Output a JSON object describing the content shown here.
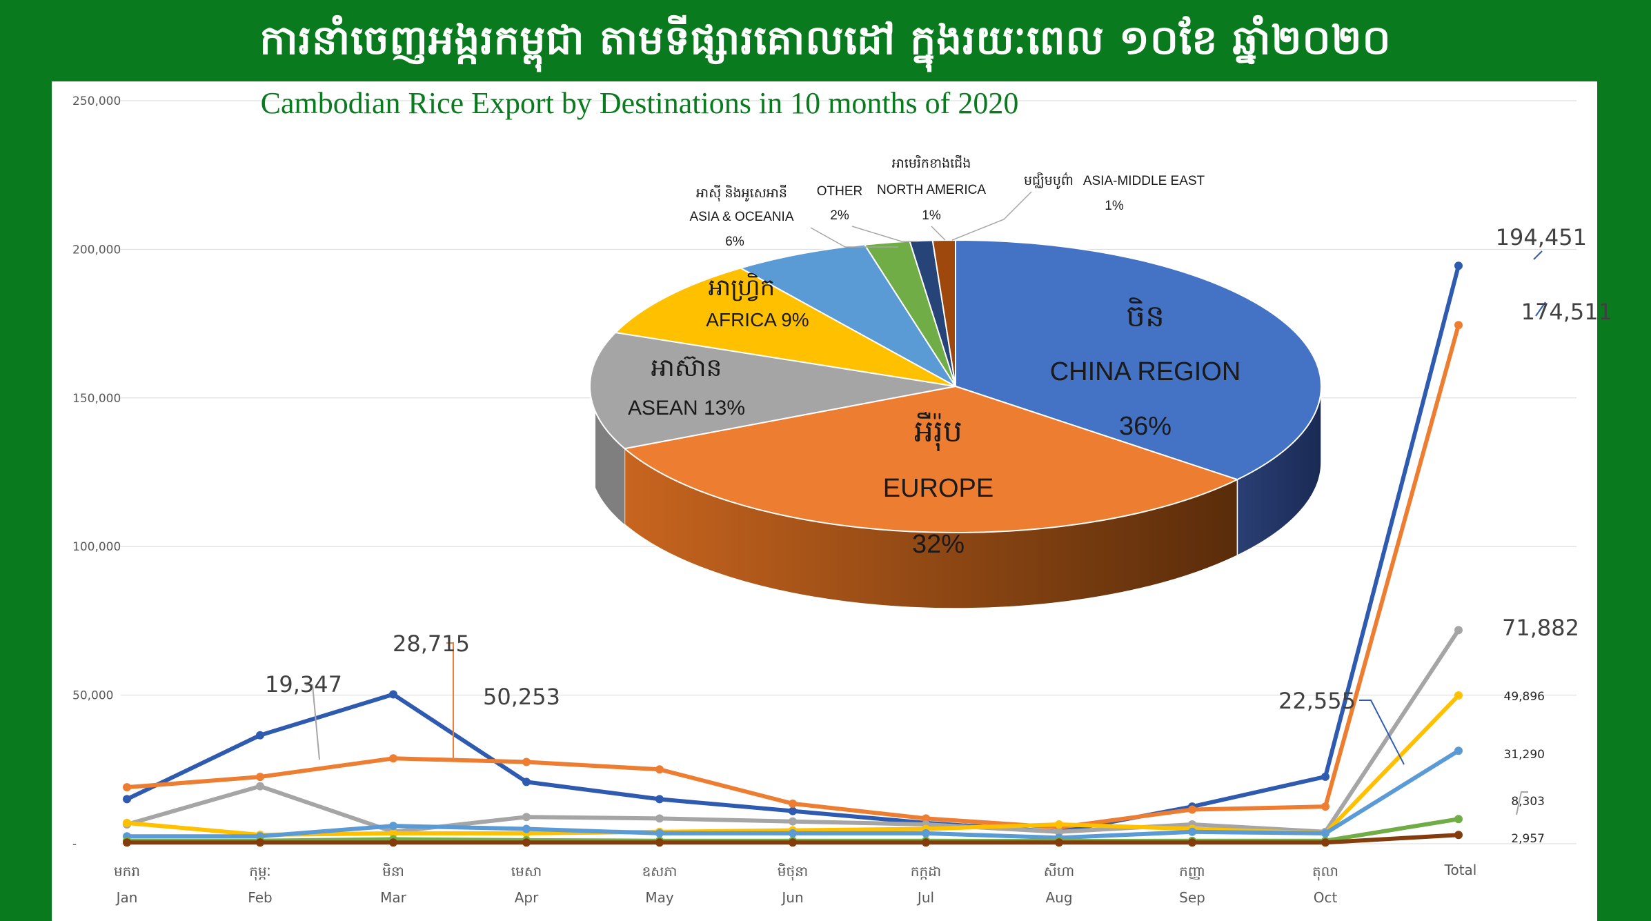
{
  "header": {
    "khmer_title": "ការនាំចេញអង្ករកម្ពុជា តាមទីផ្សារគោលដៅ ក្នុងរយៈពេល ១០ខែ ឆ្នាំ២០២០"
  },
  "chart_data": [
    {
      "type": "line",
      "title": "Cambodian Rice Export by Destinations in 10 months of 2020",
      "categories": [
        {
          "kh": "មករា",
          "en": "Jan"
        },
        {
          "kh": "កុម្ភៈ",
          "en": "Feb"
        },
        {
          "kh": "មិនា",
          "en": "Mar"
        },
        {
          "kh": "មេសា",
          "en": "Apr"
        },
        {
          "kh": "ឧសភា",
          "en": "May"
        },
        {
          "kh": "មិថុនា",
          "en": "Jun"
        },
        {
          "kh": "កក្កដា",
          "en": "Jul"
        },
        {
          "kh": "សីហា",
          "en": "Aug"
        },
        {
          "kh": "កញ្ញា",
          "en": "Sep"
        },
        {
          "kh": "តុលា",
          "en": "Oct"
        },
        {
          "kh": "",
          "en": "Total"
        }
      ],
      "ylim": [
        0,
        250000
      ],
      "yticks": [
        {
          "value": 0,
          "label": "-"
        },
        {
          "value": 50000,
          "label": "50,000"
        },
        {
          "value": 100000,
          "label": "100,000"
        },
        {
          "value": 150000,
          "label": "150,000"
        },
        {
          "value": 200000,
          "label": "200,000"
        },
        {
          "value": 250000,
          "label": "250,000"
        }
      ],
      "grid": true,
      "series": [
        {
          "color": "#2e5bb0",
          "values": [
            15000,
            36500,
            50253,
            20800,
            15000,
            11000,
            7000,
            4000,
            12500,
            22555,
            194451
          ]
        },
        {
          "color": "#ed7d31",
          "values": [
            19000,
            22500,
            28715,
            27500,
            25000,
            13500,
            8500,
            5500,
            11500,
            12500,
            174511
          ]
        },
        {
          "color": "#a5a5a5",
          "values": [
            6500,
            19347,
            4000,
            9000,
            8500,
            7500,
            6500,
            4000,
            6500,
            4000,
            71882
          ]
        },
        {
          "color": "#ffc000",
          "values": [
            7000,
            3000,
            3500,
            3500,
            4000,
            4500,
            5000,
            6500,
            5000,
            3500,
            49896
          ]
        },
        {
          "color": "#5b9bd5",
          "values": [
            2500,
            2500,
            6000,
            5000,
            3500,
            3500,
            3500,
            2000,
            4000,
            3500,
            31290
          ]
        },
        {
          "color": "#70ad47",
          "values": [
            1000,
            1000,
            1500,
            1200,
            1000,
            1000,
            1000,
            900,
            1000,
            1000,
            8303
          ]
        },
        {
          "color": "#843c0c",
          "values": [
            400,
            400,
            400,
            400,
            400,
            400,
            400,
            400,
            400,
            400,
            2957
          ]
        }
      ],
      "annotations": [
        {
          "series": 0,
          "index": 2,
          "label": "50,253"
        },
        {
          "series": 1,
          "index": 2,
          "label": "28,715"
        },
        {
          "series": 2,
          "index": 1,
          "label": "19,347"
        },
        {
          "series": 0,
          "index": 9,
          "label": "22,555"
        },
        {
          "series": 0,
          "index": 10,
          "label": "194,451"
        },
        {
          "series": 1,
          "index": 10,
          "label": "174,511"
        },
        {
          "series": 2,
          "index": 10,
          "label": "71,882"
        },
        {
          "series": 3,
          "index": 10,
          "label": "49,896"
        },
        {
          "series": 4,
          "index": 10,
          "label": "31,290"
        },
        {
          "series": 5,
          "index": 10,
          "label": "8,303"
        },
        {
          "series": 6,
          "index": 10,
          "label": "2,957"
        }
      ]
    },
    {
      "type": "pie",
      "slices": [
        {
          "kh": "ចិន",
          "en": "CHINA REGION",
          "pct": "36%",
          "value": 36,
          "color": "#4472c4"
        },
        {
          "kh": "អឺរ៉ុប",
          "en": "EUROPE",
          "pct": "32%",
          "value": 32,
          "color": "#ed7d31"
        },
        {
          "kh": "អាស៊ាន",
          "en": "ASEAN 13%",
          "pct": "",
          "value": 13,
          "color": "#a5a5a5"
        },
        {
          "kh": "អាហ្វ្រិក",
          "en": "AFRICA 9%",
          "pct": "",
          "value": 9,
          "color": "#ffc000"
        },
        {
          "kh": "អាស៊ី និងអូសេអានី",
          "en": "ASIA & OCEANIA",
          "pct": "6%",
          "value": 6,
          "color": "#5b9bd5"
        },
        {
          "kh": "",
          "en": "OTHER",
          "pct": "2%",
          "value": 2,
          "color": "#70ad47"
        },
        {
          "kh": "អាមេរិកខាងជើង",
          "en": "NORTH AMERICA",
          "pct": "1%",
          "value": 1,
          "color": "#264478"
        },
        {
          "kh": "មជ្ឈិមបូព៌ា",
          "en": "ASIA-MIDDLE EAST",
          "pct": "1%",
          "value": 1,
          "color": "#9e480e"
        }
      ]
    }
  ]
}
